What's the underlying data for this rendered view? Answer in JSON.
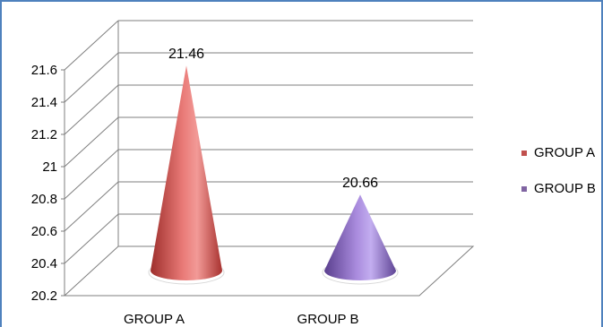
{
  "chart_data": {
    "type": "bar",
    "style": "3d-cone",
    "title": "",
    "xlabel": "",
    "ylabel": "",
    "ylim": [
      20.2,
      21.6
    ],
    "yticks": [
      "20.2",
      "20.4",
      "20.6",
      "20.8",
      "21",
      "21.2",
      "21.4",
      "21.6"
    ],
    "categories": [
      "GROUP A",
      "GROUP B"
    ],
    "values": [
      21.46,
      20.66
    ],
    "data_labels": [
      "21.46",
      "20.66"
    ],
    "grid": true,
    "legend": {
      "position": "right",
      "entries": [
        {
          "label": "GROUP A",
          "color": "#c0504d"
        },
        {
          "label": "GROUP B",
          "color": "#8064a2"
        }
      ]
    },
    "colors": {
      "GROUP A": "#e06666",
      "GROUP B": "#9b7fd0",
      "frame": "#4f81bd",
      "grid": "#7f7f7f"
    }
  }
}
